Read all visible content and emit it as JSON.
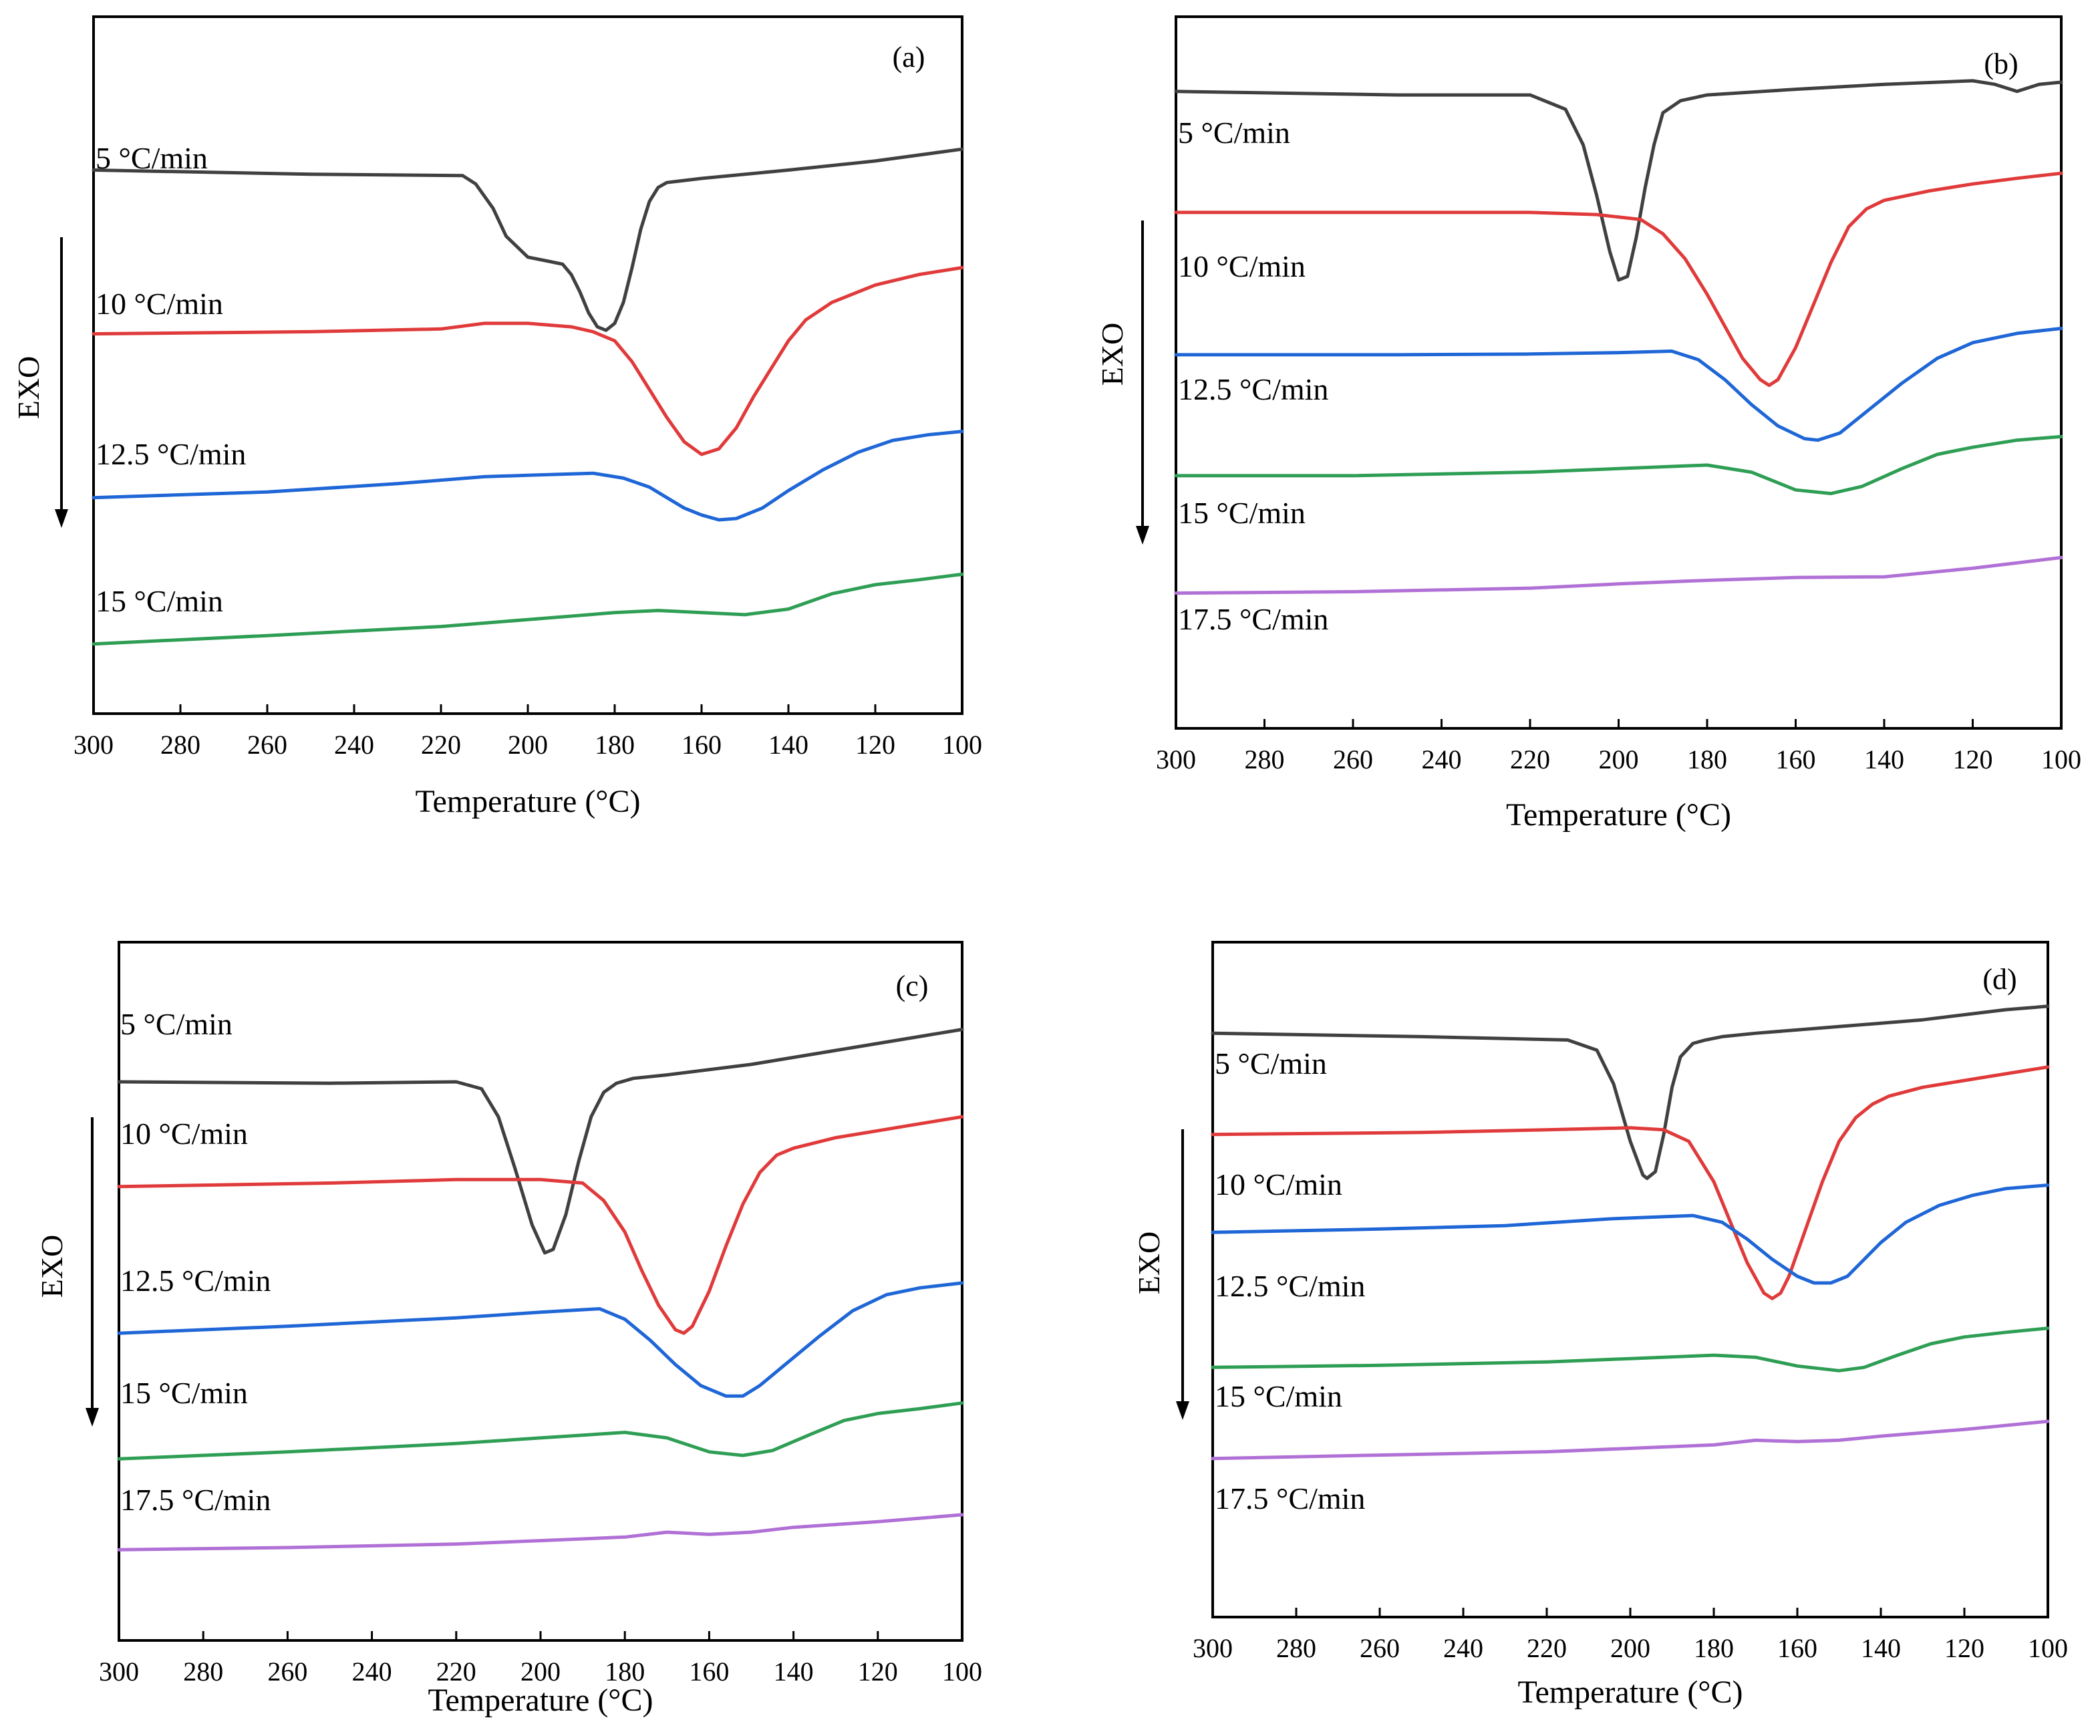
{
  "chart_data": [
    {
      "type": "line",
      "panel_label": "(a)",
      "xlabel": "Temperature (°C)",
      "ylabel": "EXO",
      "xlim": [
        300,
        100
      ],
      "xticks": [
        300,
        280,
        260,
        240,
        220,
        200,
        180,
        160,
        140,
        120,
        100
      ],
      "ylim": [
        0,
        10
      ],
      "series": [
        {
          "name": "5 °C/min",
          "color": "#404040",
          "x": [
            300,
            250,
            215,
            212,
            208,
            205,
            200,
            196,
            192,
            190,
            188,
            186,
            184,
            182,
            180,
            178,
            176,
            174,
            172,
            170,
            168,
            160,
            140,
            120,
            100
          ],
          "values": [
            7.8,
            7.74,
            7.72,
            7.6,
            7.25,
            6.85,
            6.55,
            6.5,
            6.45,
            6.3,
            6.05,
            5.75,
            5.55,
            5.5,
            5.6,
            5.9,
            6.4,
            6.95,
            7.35,
            7.55,
            7.62,
            7.68,
            7.8,
            7.93,
            8.1
          ]
        },
        {
          "name": "10 °C/min",
          "color": "#e03a3a",
          "x": [
            300,
            250,
            220,
            210,
            200,
            190,
            185,
            180,
            176,
            172,
            168,
            164,
            160,
            156,
            152,
            148,
            144,
            140,
            136,
            130,
            120,
            110,
            100
          ],
          "values": [
            5.45,
            5.48,
            5.52,
            5.6,
            5.6,
            5.55,
            5.48,
            5.35,
            5.05,
            4.65,
            4.25,
            3.9,
            3.72,
            3.8,
            4.1,
            4.55,
            4.95,
            5.35,
            5.65,
            5.9,
            6.15,
            6.3,
            6.4
          ]
        },
        {
          "name": "12.5 °C/min",
          "color": "#1f66d6",
          "x": [
            300,
            260,
            230,
            210,
            200,
            185,
            178,
            172,
            168,
            164,
            160,
            156,
            152,
            146,
            140,
            132,
            124,
            116,
            108,
            100
          ],
          "values": [
            3.1,
            3.18,
            3.3,
            3.4,
            3.42,
            3.45,
            3.38,
            3.25,
            3.1,
            2.95,
            2.85,
            2.78,
            2.8,
            2.95,
            3.2,
            3.5,
            3.75,
            3.92,
            4.0,
            4.05
          ]
        },
        {
          "name": "15 °C/min",
          "color": "#2f9e55",
          "x": [
            300,
            260,
            220,
            200,
            180,
            170,
            160,
            150,
            140,
            130,
            120,
            110,
            100
          ],
          "values": [
            1.0,
            1.12,
            1.25,
            1.35,
            1.45,
            1.48,
            1.45,
            1.42,
            1.5,
            1.72,
            1.85,
            1.92,
            2.0
          ]
        }
      ]
    },
    {
      "type": "line",
      "panel_label": "(b)",
      "xlabel": "Temperature (°C)",
      "ylabel": "EXO",
      "xlim": [
        300,
        100
      ],
      "xticks": [
        300,
        280,
        260,
        240,
        220,
        200,
        180,
        160,
        140,
        120,
        100
      ],
      "ylim": [
        0,
        10
      ],
      "series": [
        {
          "name": "5 °C/min",
          "color": "#404040",
          "x": [
            300,
            250,
            220,
            212,
            208,
            205,
            202,
            200,
            198,
            196,
            194,
            192,
            190,
            186,
            180,
            160,
            140,
            120,
            115,
            110,
            105,
            100
          ],
          "values": [
            8.95,
            8.9,
            8.9,
            8.7,
            8.2,
            7.5,
            6.7,
            6.3,
            6.35,
            6.9,
            7.6,
            8.2,
            8.65,
            8.82,
            8.9,
            8.98,
            9.05,
            9.1,
            9.05,
            8.95,
            9.05,
            9.08
          ]
        },
        {
          "name": "10 °C/min",
          "color": "#e03a3a",
          "x": [
            300,
            250,
            220,
            205,
            195,
            190,
            185,
            180,
            176,
            172,
            168,
            166,
            164,
            160,
            156,
            152,
            148,
            144,
            140,
            130,
            120,
            110,
            100
          ],
          "values": [
            7.25,
            7.25,
            7.25,
            7.22,
            7.15,
            6.95,
            6.6,
            6.1,
            5.65,
            5.2,
            4.9,
            4.82,
            4.9,
            5.35,
            5.95,
            6.55,
            7.05,
            7.3,
            7.42,
            7.55,
            7.65,
            7.73,
            7.8
          ]
        },
        {
          "name": "12.5 °C/min",
          "color": "#1f66d6",
          "x": [
            300,
            250,
            220,
            200,
            188,
            182,
            176,
            170,
            164,
            158,
            155,
            150,
            144,
            136,
            128,
            120,
            110,
            100
          ],
          "values": [
            5.25,
            5.25,
            5.26,
            5.28,
            5.3,
            5.18,
            4.9,
            4.55,
            4.25,
            4.07,
            4.05,
            4.15,
            4.45,
            4.85,
            5.2,
            5.42,
            5.55,
            5.62
          ]
        },
        {
          "name": "15 °C/min",
          "color": "#2f9e55",
          "x": [
            300,
            260,
            220,
            200,
            180,
            170,
            160,
            152,
            145,
            136,
            128,
            120,
            110,
            100
          ],
          "values": [
            3.55,
            3.55,
            3.6,
            3.65,
            3.7,
            3.6,
            3.35,
            3.3,
            3.4,
            3.65,
            3.85,
            3.95,
            4.05,
            4.1
          ]
        },
        {
          "name": "17.5 °C/min",
          "color": "#b070d6",
          "x": [
            300,
            260,
            220,
            200,
            180,
            160,
            140,
            120,
            100
          ],
          "values": [
            1.9,
            1.92,
            1.97,
            2.03,
            2.08,
            2.12,
            2.13,
            2.25,
            2.4
          ]
        }
      ]
    },
    {
      "type": "line",
      "panel_label": "(c)",
      "xlabel": "Temperature (°C)",
      "ylabel": "EXO",
      "xlim": [
        300,
        100
      ],
      "xticks": [
        300,
        280,
        260,
        240,
        220,
        200,
        180,
        160,
        140,
        120,
        100
      ],
      "ylim": [
        0,
        10
      ],
      "series": [
        {
          "name": "5 °C/min",
          "color": "#404040",
          "x": [
            300,
            250,
            220,
            214,
            210,
            206,
            202,
            199,
            197,
            194,
            191,
            188,
            185,
            182,
            178,
            170,
            150,
            130,
            110,
            100
          ],
          "values": [
            8.0,
            7.98,
            8.0,
            7.9,
            7.5,
            6.75,
            5.95,
            5.55,
            5.6,
            6.1,
            6.85,
            7.5,
            7.85,
            7.98,
            8.05,
            8.1,
            8.25,
            8.45,
            8.65,
            8.75
          ]
        },
        {
          "name": "10 °C/min",
          "color": "#e03a3a",
          "x": [
            300,
            250,
            220,
            200,
            190,
            185,
            180,
            176,
            172,
            168,
            166,
            164,
            160,
            156,
            152,
            148,
            144,
            140,
            130,
            120,
            110,
            100
          ],
          "values": [
            6.5,
            6.55,
            6.6,
            6.6,
            6.55,
            6.3,
            5.85,
            5.3,
            4.8,
            4.45,
            4.4,
            4.5,
            5.0,
            5.65,
            6.25,
            6.7,
            6.95,
            7.05,
            7.2,
            7.3,
            7.4,
            7.5
          ]
        },
        {
          "name": "12.5 °C/min",
          "color": "#1f66d6",
          "x": [
            300,
            260,
            220,
            200,
            186,
            180,
            174,
            168,
            162,
            156,
            152,
            148,
            142,
            134,
            126,
            118,
            110,
            100
          ],
          "values": [
            4.4,
            4.5,
            4.62,
            4.7,
            4.75,
            4.6,
            4.3,
            3.95,
            3.65,
            3.5,
            3.5,
            3.65,
            3.95,
            4.35,
            4.72,
            4.95,
            5.05,
            5.12
          ]
        },
        {
          "name": "15 °C/min",
          "color": "#2f9e55",
          "x": [
            300,
            260,
            220,
            200,
            180,
            170,
            160,
            152,
            145,
            136,
            128,
            120,
            110,
            100
          ],
          "values": [
            2.6,
            2.7,
            2.82,
            2.9,
            2.98,
            2.9,
            2.7,
            2.65,
            2.72,
            2.95,
            3.15,
            3.25,
            3.32,
            3.4
          ]
        },
        {
          "name": "17.5 °C/min",
          "color": "#b070d6",
          "x": [
            300,
            260,
            220,
            200,
            180,
            170,
            160,
            150,
            140,
            120,
            100
          ],
          "values": [
            1.3,
            1.33,
            1.38,
            1.43,
            1.48,
            1.55,
            1.52,
            1.55,
            1.62,
            1.7,
            1.8
          ]
        }
      ]
    },
    {
      "type": "line",
      "panel_label": "(d)",
      "xlabel": "Temperature (°C)",
      "ylabel": "EXO",
      "xlim": [
        300,
        100
      ],
      "xticks": [
        300,
        280,
        260,
        240,
        220,
        200,
        180,
        160,
        140,
        120,
        100
      ],
      "ylim": [
        0,
        10
      ],
      "series": [
        {
          "name": "5 °C/min",
          "color": "#404040",
          "x": [
            300,
            250,
            215,
            208,
            204,
            200,
            197,
            196,
            194,
            192,
            190,
            188,
            185,
            182,
            178,
            170,
            150,
            130,
            110,
            100
          ],
          "values": [
            8.65,
            8.6,
            8.55,
            8.4,
            7.9,
            7.05,
            6.55,
            6.5,
            6.6,
            7.15,
            7.85,
            8.3,
            8.5,
            8.55,
            8.6,
            8.65,
            8.75,
            8.85,
            9.0,
            9.05
          ]
        },
        {
          "name": "10 °C/min",
          "color": "#e03a3a",
          "x": [
            300,
            250,
            220,
            200,
            192,
            186,
            180,
            176,
            172,
            168,
            166,
            164,
            162,
            158,
            154,
            150,
            146,
            142,
            138,
            130,
            120,
            110,
            100
          ],
          "values": [
            7.15,
            7.18,
            7.22,
            7.25,
            7.22,
            7.05,
            6.45,
            5.85,
            5.25,
            4.8,
            4.72,
            4.8,
            5.05,
            5.75,
            6.45,
            7.05,
            7.4,
            7.6,
            7.72,
            7.85,
            7.95,
            8.05,
            8.15
          ]
        },
        {
          "name": "12.5 °C/min",
          "color": "#1f66d6",
          "x": [
            300,
            260,
            230,
            205,
            185,
            178,
            172,
            166,
            160,
            156,
            152,
            148,
            144,
            140,
            134,
            126,
            118,
            110,
            100
          ],
          "values": [
            5.7,
            5.75,
            5.8,
            5.9,
            5.95,
            5.85,
            5.6,
            5.3,
            5.05,
            4.95,
            4.95,
            5.05,
            5.3,
            5.55,
            5.85,
            6.1,
            6.25,
            6.35,
            6.4
          ]
        },
        {
          "name": "15 °C/min",
          "color": "#2f9e55",
          "x": [
            300,
            260,
            220,
            200,
            180,
            170,
            160,
            150,
            144,
            136,
            128,
            120,
            110,
            100
          ],
          "values": [
            3.7,
            3.73,
            3.78,
            3.83,
            3.88,
            3.85,
            3.72,
            3.65,
            3.7,
            3.88,
            4.05,
            4.15,
            4.22,
            4.28
          ]
        },
        {
          "name": "17.5 °C/min",
          "color": "#b070d6",
          "x": [
            300,
            260,
            220,
            200,
            180,
            170,
            160,
            150,
            140,
            120,
            100
          ],
          "values": [
            2.35,
            2.4,
            2.45,
            2.5,
            2.55,
            2.62,
            2.6,
            2.62,
            2.68,
            2.78,
            2.9
          ]
        }
      ]
    }
  ]
}
